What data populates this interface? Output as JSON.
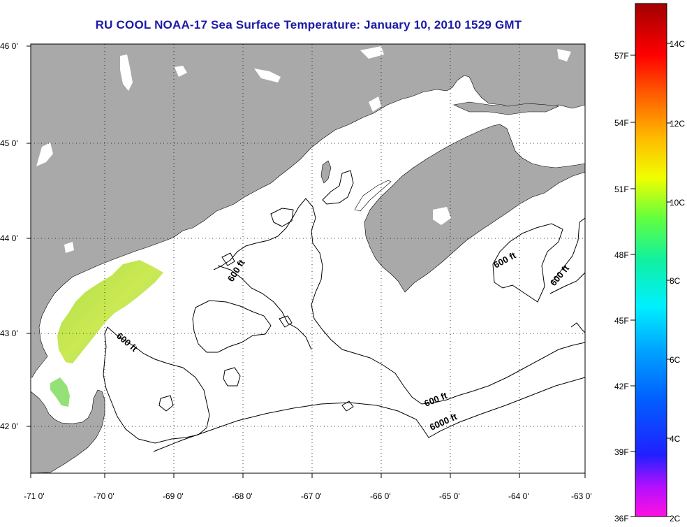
{
  "title": "RU COOL  NOAA-17  Sea Surface Temperature:  January 10, 2010 1529 GMT",
  "map": {
    "lat_labels": [
      "46 0'",
      "45 0'",
      "44 0'",
      "43 0'",
      "42 0'"
    ],
    "lon_labels": [
      "-71 0'",
      "-70 0'",
      "-69 0'",
      "-68 0'",
      "-67 0'",
      "-66 0'",
      "-65 0'",
      "-64 0'",
      "-63 0'"
    ],
    "contour_labels": [
      "600 ft",
      "600 ft",
      "600 ft",
      "600 ft",
      "600 ft",
      "6000 ft"
    ],
    "colors": {
      "land": "#a9a9a9",
      "ocean": "#ffffff",
      "sst_warm": "#b4e14a",
      "sst_cool": "#8fe07a"
    }
  },
  "colorbar": {
    "fahrenheit_labels": [
      "57F",
      "54F",
      "51F",
      "48F",
      "45F",
      "42F",
      "39F",
      "36F"
    ],
    "celsius_labels": [
      "14C",
      "12C",
      "10C",
      "8C",
      "6C",
      "4C",
      "2C"
    ]
  }
}
